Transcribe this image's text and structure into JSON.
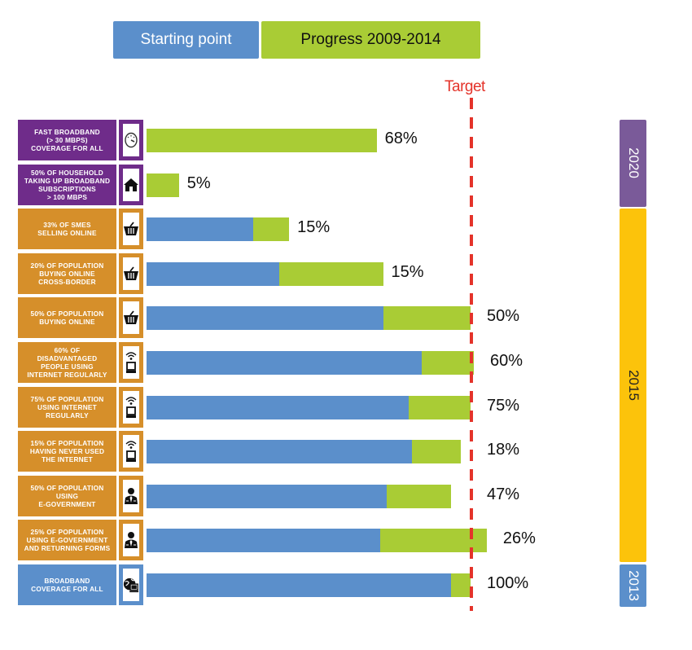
{
  "legend": {
    "starting_point": "Starting point",
    "progress": "Progress 2009-2014",
    "target": "Target"
  },
  "colors": {
    "starting_point": "#5b8fcb",
    "progress": "#a9cc35",
    "target": "#e4332a",
    "group_2020": "#6f2c8a",
    "group_2015": "#d68f2a",
    "group_2013": "#5b8fcb",
    "band_2020": "#7a5a99",
    "band_2015": "#fcc30b",
    "band_2013": "#5b8fcb"
  },
  "year_bands": [
    {
      "year": "2020",
      "color_key": "band_2020",
      "text_color": "#ffffff",
      "rows": [
        0,
        1
      ]
    },
    {
      "year": "2015",
      "color_key": "band_2015",
      "text_color": "#222222",
      "rows": [
        2,
        9
      ]
    },
    {
      "year": "2013",
      "color_key": "band_2013",
      "text_color": "#ffffff",
      "rows": [
        10,
        10
      ]
    }
  ],
  "chart_data": {
    "type": "bar",
    "orientation": "horizontal-stacked",
    "title": "",
    "legend": [
      "Starting point",
      "Progress 2009-2014"
    ],
    "legend_position": "top",
    "reference_line": {
      "label": "Target",
      "value": 1.0,
      "style": "dashed"
    },
    "value_units": "fraction of target (bar lengths estimated)",
    "categories": [
      "Fast broadband (> 30 Mbps) coverage for all",
      "50% of household taking up broadband subscriptions > 100 Mbps",
      "33% of SMEs selling online",
      "20% of population buying online cross-border",
      "50% of population buying online",
      "60% of disadvantaged people using internet regularly",
      "75% of population using internet regularly",
      "15% of population having never used the internet",
      "50% of population using e-government",
      "25% of population using e-government and returning forms",
      "Broadband coverage for all"
    ],
    "series": [
      {
        "name": "Starting point",
        "values": [
          0,
          0,
          0.33,
          0.41,
          0.73,
          0.85,
          0.81,
          0.82,
          0.74,
          0.72,
          0.94
        ]
      },
      {
        "name": "Progress 2009-2014",
        "values": [
          0.71,
          0.1,
          0.11,
          0.32,
          0.27,
          0.16,
          0.19,
          0.15,
          0.2,
          0.33,
          0.06
        ]
      }
    ],
    "data_labels": [
      "68%",
      "5%",
      "15%",
      "15%",
      "50%",
      "60%",
      "75%",
      "18%",
      "47%",
      "26%",
      "100%"
    ],
    "target_year": [
      "2020",
      "2020",
      "2015",
      "2015",
      "2015",
      "2015",
      "2015",
      "2015",
      "2015",
      "2015",
      "2013"
    ]
  },
  "rows": [
    {
      "label_lines": [
        "Fast broadband",
        "(> 30 Mbps)",
        "coverage for all"
      ],
      "group": "group_2020",
      "icon": "speedometer-icon"
    },
    {
      "label_lines": [
        "50% of household",
        "taking up broadband",
        "subscriptions",
        "> 100 Mbps"
      ],
      "group": "group_2020",
      "icon": "house-icon"
    },
    {
      "label_lines": [
        "33% of SMEs",
        "selling online"
      ],
      "group": "group_2015",
      "icon": "shopping-basket-icon"
    },
    {
      "label_lines": [
        "20% of population",
        "buying online",
        "cross-border"
      ],
      "group": "group_2015",
      "icon": "shopping-basket-icon"
    },
    {
      "label_lines": [
        "50% of population",
        "buying online"
      ],
      "group": "group_2015",
      "icon": "shopping-basket-icon"
    },
    {
      "label_lines": [
        "60% of",
        "disadvantaged",
        "people using",
        "internet regularly"
      ],
      "group": "group_2015",
      "icon": "wifi-computer-icon"
    },
    {
      "label_lines": [
        "75% of population",
        "using internet",
        "regularly"
      ],
      "group": "group_2015",
      "icon": "wifi-computer-icon"
    },
    {
      "label_lines": [
        "15% of population",
        "having never used",
        "the internet"
      ],
      "group": "group_2015",
      "icon": "wifi-computer-icon"
    },
    {
      "label_lines": [
        "50% of population",
        "using",
        "e-government"
      ],
      "group": "group_2015",
      "icon": "person-icon"
    },
    {
      "label_lines": [
        "25% of population",
        "using e-government",
        "and returning forms"
      ],
      "group": "group_2015",
      "icon": "person-icon"
    },
    {
      "label_lines": [
        "Broadband",
        "coverage for all"
      ],
      "group": "group_2013",
      "icon": "globe-computer-icon"
    }
  ]
}
